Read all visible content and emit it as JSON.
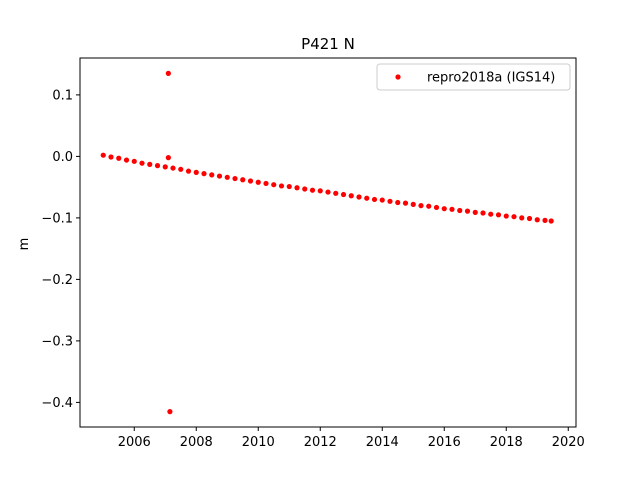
{
  "chart_data": {
    "type": "scatter",
    "title": "P421 N",
    "xlabel": "",
    "ylabel": "m",
    "xlim": [
      2004.25,
      2020.25
    ],
    "ylim": [
      -0.44,
      0.16
    ],
    "x_ticks": [
      2006,
      2008,
      2010,
      2012,
      2014,
      2016,
      2018,
      2020
    ],
    "y_ticks": [
      0.1,
      0.0,
      -0.1,
      -0.2,
      -0.3,
      -0.4
    ],
    "y_tick_labels": [
      "0.1",
      "0.0",
      "−0.1",
      "−0.2",
      "−0.3",
      "−0.4"
    ],
    "grid": false,
    "legend_position": "top-right",
    "series": [
      {
        "name": "repro2018a (IGS14)",
        "color": "#ff0000",
        "marker": "circle",
        "x": [
          2005.0,
          2005.25,
          2005.5,
          2005.75,
          2006.0,
          2006.25,
          2006.5,
          2006.75,
          2007.0,
          2007.25,
          2007.5,
          2007.75,
          2008.0,
          2008.25,
          2008.5,
          2008.75,
          2009.0,
          2009.25,
          2009.5,
          2009.75,
          2010.0,
          2010.25,
          2010.5,
          2010.75,
          2011.0,
          2011.25,
          2011.5,
          2011.75,
          2012.0,
          2012.25,
          2012.5,
          2012.75,
          2013.0,
          2013.25,
          2013.5,
          2013.75,
          2014.0,
          2014.25,
          2014.5,
          2014.75,
          2015.0,
          2015.25,
          2015.5,
          2015.75,
          2016.0,
          2016.25,
          2016.5,
          2016.75,
          2017.0,
          2017.25,
          2017.5,
          2017.75,
          2018.0,
          2018.25,
          2018.5,
          2018.75,
          2019.0,
          2019.25,
          2019.45
        ],
        "y": [
          0.002,
          -0.001,
          -0.003,
          -0.006,
          -0.008,
          -0.011,
          -0.013,
          -0.015,
          -0.017,
          -0.019,
          -0.021,
          -0.024,
          -0.026,
          -0.028,
          -0.03,
          -0.032,
          -0.034,
          -0.036,
          -0.038,
          -0.04,
          -0.042,
          -0.044,
          -0.046,
          -0.048,
          -0.049,
          -0.051,
          -0.053,
          -0.055,
          -0.056,
          -0.058,
          -0.06,
          -0.062,
          -0.064,
          -0.066,
          -0.068,
          -0.07,
          -0.071,
          -0.073,
          -0.075,
          -0.076,
          -0.078,
          -0.08,
          -0.081,
          -0.083,
          -0.085,
          -0.086,
          -0.088,
          -0.089,
          -0.091,
          -0.092,
          -0.094,
          -0.095,
          -0.097,
          -0.098,
          -0.1,
          -0.101,
          -0.103,
          -0.104,
          -0.105
        ]
      },
      {
        "name": "",
        "color": "#ff0000",
        "marker": "circle",
        "x": [
          2007.1,
          2007.1,
          2007.15
        ],
        "y": [
          0.135,
          -0.002,
          -0.415
        ]
      }
    ]
  }
}
